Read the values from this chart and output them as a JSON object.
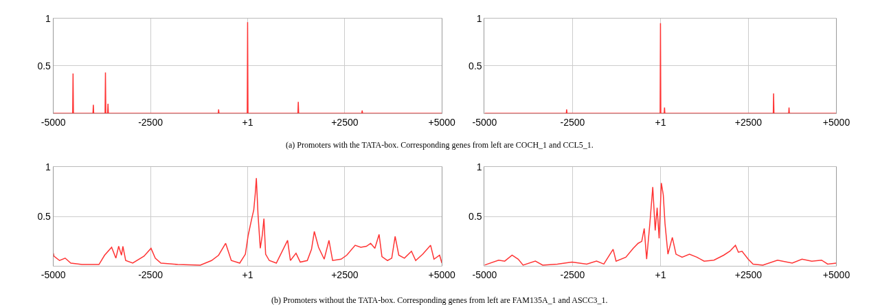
{
  "chart_data": [
    {
      "type": "line",
      "xlim": [
        -5000,
        5000
      ],
      "ylim": [
        0,
        1
      ],
      "xticks": [
        -5000,
        -2500,
        {
          "value": 1,
          "label": "+1"
        },
        {
          "value": 2500,
          "label": "+2500"
        },
        {
          "value": 5000,
          "label": "+5000"
        }
      ],
      "yticks": [
        0.5,
        1
      ],
      "grid": true,
      "series": [
        {
          "color": "#ff3333",
          "x": [
            -5000,
            -4503,
            -4493,
            -4483,
            -3981,
            -3971,
            -3961,
            -3669,
            -3659,
            -3649,
            -3604,
            -3594,
            -3584,
            -756,
            -746,
            -736,
            -10,
            0,
            10,
            1294,
            1304,
            1314,
            2939,
            2949,
            2959,
            5000
          ],
          "values": [
            0,
            0,
            0.42,
            0,
            0,
            0.09,
            0,
            0,
            0.43,
            0,
            0,
            0.1,
            0,
            0,
            0.04,
            0,
            0,
            0.96,
            0,
            0,
            0.12,
            0,
            0,
            0.03,
            0,
            0
          ]
        }
      ],
      "annotations": [
        "(a) Promoters with the TATA-box. Corresponding genes from left are COCH_1 and CCL5_1."
      ]
    },
    {
      "type": "line",
      "xlim": [
        -5000,
        5000
      ],
      "ylim": [
        0,
        1
      ],
      "xticks": [
        -5000,
        -2500,
        {
          "value": 1,
          "label": "+1"
        },
        {
          "value": 2500,
          "label": "+2500"
        },
        {
          "value": 5000,
          "label": "+5000"
        }
      ],
      "yticks": [
        0.5,
        1
      ],
      "grid": true,
      "series": [
        {
          "color": "#ff3333",
          "x": [
            -5000,
            -2677,
            -2667,
            -2657,
            -10,
            0,
            10,
            105,
            115,
            125,
            3206,
            3216,
            3226,
            3644,
            3654,
            3664,
            5000
          ],
          "values": [
            0,
            0,
            0.04,
            0,
            0,
            0.95,
            0,
            0,
            0.06,
            0,
            0,
            0.21,
            0,
            0,
            0.06,
            0,
            0
          ]
        }
      ]
    },
    {
      "type": "line",
      "xlim": [
        -5000,
        5000
      ],
      "ylim": [
        0,
        1
      ],
      "xticks": [
        -5000,
        -2500,
        {
          "value": 1,
          "label": "+1"
        },
        {
          "value": 2500,
          "label": "+2500"
        },
        {
          "value": 5000,
          "label": "+5000"
        }
      ],
      "yticks": [
        0.5,
        1
      ],
      "grid": true,
      "series": [
        {
          "color": "#ff3333",
          "x": [
            -5000,
            -4986,
            -4841,
            -4696,
            -4551,
            -4261,
            -3826,
            -3681,
            -3500,
            -3391,
            -3319,
            -3246,
            -3210,
            -3138,
            -2957,
            -2667,
            -2486,
            -2377,
            -2232,
            -1797,
            -1217,
            -928,
            -746,
            -565,
            -420,
            -203,
            -58,
            14,
            101,
            159,
            196,
            225,
            268,
            326,
            377,
            420,
            464,
            558,
            739,
            1029,
            1101,
            1246,
            1355,
            1536,
            1645,
            1717,
            1826,
            1971,
            2094,
            2188,
            2406,
            2551,
            2768,
            2913,
            3058,
            3167,
            3275,
            3384,
            3457,
            3601,
            3710,
            3797,
            3891,
            4036,
            4217,
            4326,
            4507,
            4710,
            4797,
            4942,
            5000
          ],
          "values": [
            0.13,
            0.1,
            0.056,
            0.08,
            0.03,
            0.016,
            0.016,
            0.11,
            0.19,
            0.08,
            0.2,
            0.11,
            0.2,
            0.056,
            0.03,
            0.1,
            0.18,
            0.08,
            0.03,
            0.016,
            0.01,
            0.056,
            0.11,
            0.23,
            0.056,
            0.03,
            0.12,
            0.31,
            0.47,
            0.57,
            0.73,
            0.89,
            0.52,
            0.18,
            0.31,
            0.48,
            0.12,
            0.056,
            0.03,
            0.26,
            0.056,
            0.13,
            0.04,
            0.056,
            0.17,
            0.35,
            0.19,
            0.07,
            0.26,
            0.056,
            0.07,
            0.11,
            0.21,
            0.19,
            0.2,
            0.23,
            0.18,
            0.32,
            0.096,
            0.056,
            0.08,
            0.3,
            0.11,
            0.08,
            0.15,
            0.056,
            0.12,
            0.21,
            0.07,
            0.11,
            0.03
          ]
        }
      ],
      "annotations": [
        "(b) Promoters without the TATA-box. Corresponding genes from left are FAM135A_1 and ASCC3_1."
      ]
    },
    {
      "type": "line",
      "xlim": [
        -5000,
        5000
      ],
      "ylim": [
        0,
        1
      ],
      "xticks": [
        -5000,
        -2500,
        {
          "value": 1,
          "label": "+1"
        },
        {
          "value": 2500,
          "label": "+2500"
        },
        {
          "value": 5000,
          "label": "+5000"
        }
      ],
      "yticks": [
        0.5,
        1
      ],
      "grid": true,
      "series": [
        {
          "color": "#ff3333",
          "x": [
            -5000,
            -4600,
            -4427,
            -4218,
            -4044,
            -3905,
            -3557,
            -3348,
            -2931,
            -2514,
            -2097,
            -1818,
            -1610,
            -1346,
            -1262,
            -984,
            -775,
            -636,
            -532,
            -462,
            -393,
            -302,
            -219,
            -150,
            -94,
            -38,
            24,
            80,
            129,
            212,
            337,
            442,
            615,
            824,
            1033,
            1241,
            1519,
            1797,
            1971,
            2131,
            2215,
            2319,
            2493,
            2632,
            2910,
            3327,
            3745,
            4023,
            4301,
            4579,
            4753,
            5000
          ],
          "values": [
            0.01,
            0.06,
            0.05,
            0.11,
            0.07,
            0.01,
            0.05,
            0.01,
            0.02,
            0.04,
            0.02,
            0.05,
            0.02,
            0.17,
            0.05,
            0.09,
            0.18,
            0.23,
            0.25,
            0.38,
            0.07,
            0.43,
            0.8,
            0.36,
            0.59,
            0.28,
            0.84,
            0.72,
            0.43,
            0.12,
            0.29,
            0.12,
            0.09,
            0.12,
            0.09,
            0.05,
            0.06,
            0.11,
            0.15,
            0.21,
            0.14,
            0.15,
            0.07,
            0.02,
            0.01,
            0.06,
            0.03,
            0.07,
            0.05,
            0.06,
            0.02,
            0.03
          ]
        }
      ]
    }
  ]
}
